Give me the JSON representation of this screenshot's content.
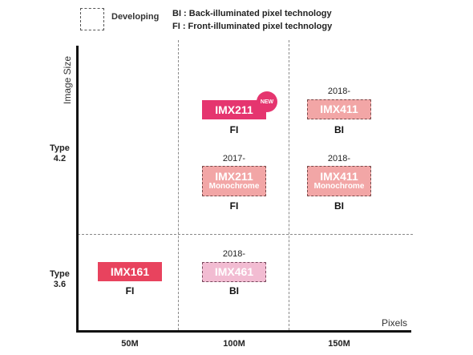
{
  "legend": {
    "developing_label": "Developing",
    "bi_definition": "BI : Back-illuminated pixel technology",
    "fi_definition": "FI : Front-illuminated pixel technology"
  },
  "axes": {
    "y_title": "Image Size",
    "x_title": "Pixels",
    "y_ticks": [
      {
        "line1": "Type",
        "line2": "4.2"
      },
      {
        "line1": "Type",
        "line2": "3.6"
      }
    ],
    "x_ticks": [
      "50M",
      "100M",
      "150M"
    ]
  },
  "products": {
    "imx161": {
      "name": "IMX161",
      "type": "FI",
      "color": "#e8435e",
      "developing": false
    },
    "imx211": {
      "name": "IMX211",
      "type": "FI",
      "badge": "NEW",
      "color": "#e5356f",
      "developing": false
    },
    "imx411_color": {
      "year": "2018-",
      "name": "IMX411",
      "type": "BI",
      "color": "#f2a6a6",
      "developing": true
    },
    "imx211_mono": {
      "year": "2017-",
      "name": "IMX211",
      "sub": "Monochrome",
      "type": "FI",
      "color": "#f2a6a6",
      "developing": true
    },
    "imx411_mono": {
      "year": "2018-",
      "name": "IMX411",
      "sub": "Monochrome",
      "type": "BI",
      "color": "#f2a6a6",
      "developing": true
    },
    "imx461": {
      "year": "2018-",
      "name": "IMX461",
      "type": "BI",
      "color": "#f2bcd2",
      "developing": true
    }
  }
}
